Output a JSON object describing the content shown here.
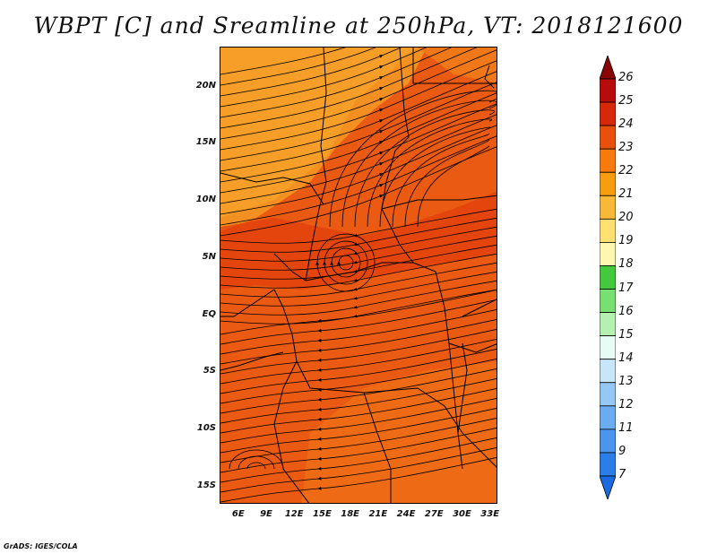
{
  "title": "WBPT [C] and Sreamline at 250hPa, VT: 2018121600",
  "credit": "GrADS: IGES/COLA",
  "map": {
    "lat_labels": [
      {
        "text": "20N",
        "lat": 20
      },
      {
        "text": "15N",
        "lat": 15
      },
      {
        "text": "10N",
        "lat": 10
      },
      {
        "text": "5N",
        "lat": 5
      },
      {
        "text": "EQ",
        "lat": 0
      },
      {
        "text": "5S",
        "lat": -5
      },
      {
        "text": "10S",
        "lat": -10
      },
      {
        "text": "15S",
        "lat": -15
      }
    ],
    "lon_labels": [
      {
        "text": "6E",
        "lon": 6
      },
      {
        "text": "9E",
        "lon": 9
      },
      {
        "text": "12E",
        "lon": 12
      },
      {
        "text": "15E",
        "lon": 15
      },
      {
        "text": "18E",
        "lon": 18
      },
      {
        "text": "21E",
        "lon": 21
      },
      {
        "text": "24E",
        "lon": 24
      },
      {
        "text": "27E",
        "lon": 27
      },
      {
        "text": "30E",
        "lon": 30
      },
      {
        "text": "33E",
        "lon": 33
      }
    ]
  },
  "colorbar": {
    "levels": [
      "7",
      "9",
      "11",
      "12",
      "13",
      "14",
      "15",
      "16",
      "17",
      "18",
      "19",
      "20",
      "21",
      "22",
      "23",
      "24",
      "25",
      "26"
    ],
    "colors": [
      "#1a6be0",
      "#2b7ee8",
      "#4a96ee",
      "#6aacf2",
      "#96c8f6",
      "#c8e6fa",
      "#e8fbf4",
      "#b4f0b0",
      "#78e070",
      "#44c83c",
      "#fff6b0",
      "#ffe070",
      "#f8b838",
      "#f89c10",
      "#f87a0c",
      "#e8500c",
      "#d8280a",
      "#b80c0c",
      "#8a0606"
    ]
  },
  "field_colors": {
    "deep": "#e03c0c",
    "main": "#ea5a12",
    "light": "#f07818",
    "warm": "#f69a24",
    "pale": "#f8b43a"
  }
}
